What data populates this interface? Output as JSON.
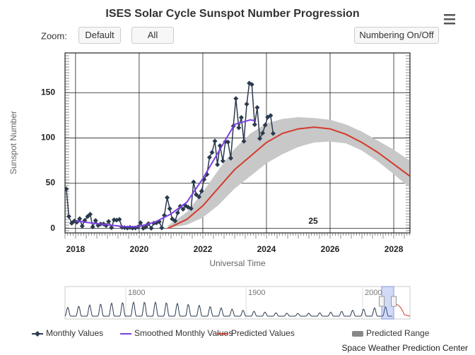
{
  "chart_data": {
    "type": "line",
    "title": "ISES Solar Cycle Sunspot Number Progression",
    "x_label": "Universal Time",
    "y_label": "Sunspot Number",
    "annotation": "25",
    "xlim": [
      2017.67,
      2028.51
    ],
    "ylim": [
      -5,
      194
    ],
    "xticks": [
      2018,
      2020,
      2022,
      2024,
      2026,
      2028
    ],
    "yticks": [
      0,
      50,
      100,
      150
    ],
    "grid": true,
    "legend": "bottom",
    "series": [
      {
        "name": "Monthly Values",
        "color": "#2b3a4e",
        "marker": "diamond",
        "x": [
          2017.71,
          2017.79,
          2017.88,
          2017.96,
          2018.04,
          2018.13,
          2018.21,
          2018.29,
          2018.38,
          2018.46,
          2018.54,
          2018.63,
          2018.71,
          2018.79,
          2018.88,
          2018.96,
          2019.04,
          2019.13,
          2019.21,
          2019.29,
          2019.38,
          2019.46,
          2019.54,
          2019.63,
          2019.71,
          2019.79,
          2019.88,
          2019.96,
          2020.04,
          2020.13,
          2020.21,
          2020.29,
          2020.38,
          2020.46,
          2020.54,
          2020.63,
          2020.71,
          2020.79,
          2020.88,
          2020.96,
          2021.04,
          2021.13,
          2021.21,
          2021.29,
          2021.38,
          2021.46,
          2021.54,
          2021.63,
          2021.71,
          2021.79,
          2021.88,
          2021.96,
          2022.04,
          2022.13,
          2022.21,
          2022.29,
          2022.38,
          2022.46,
          2022.54,
          2022.63,
          2022.71,
          2022.79,
          2022.88,
          2022.96,
          2023.04,
          2023.13,
          2023.21,
          2023.29,
          2023.38,
          2023.46,
          2023.54,
          2023.63,
          2023.71,
          2023.79,
          2023.88,
          2023.96,
          2024.04,
          2024.13,
          2024.21
        ],
        "values": [
          43.6,
          13.2,
          5.7,
          8.2,
          6.8,
          10.7,
          2.5,
          8.9,
          13.1,
          15.6,
          1.6,
          8.7,
          3.3,
          4.9,
          4.9,
          3.1,
          7.7,
          0.8,
          9.4,
          9.1,
          9.9,
          1.2,
          0.9,
          0.5,
          1.1,
          0.4,
          0.5,
          1.5,
          6.2,
          0.2,
          1.5,
          5.2,
          0.2,
          5.8,
          6.1,
          7.5,
          0.6,
          14.4,
          34.0,
          21.8,
          10.4,
          8.2,
          17.2,
          24.5,
          21.2,
          25.0,
          23.4,
          22.0,
          51.3,
          37.4,
          34.8,
          41.1,
          54.0,
          59.7,
          78.5,
          84.1,
          96.5,
          70.5,
          91.4,
          74.6,
          96.0,
          95.5,
          77.6,
          113.1,
          143.6,
          111.3,
          122.6,
          96.4,
          137.4,
          160.5,
          159.1,
          114.8,
          133.6,
          99.4,
          105.4,
          114.2,
          123.0,
          124.7,
          104.9
        ]
      },
      {
        "name": "Smoothed Monthly Values",
        "color": "#7b3fe4",
        "x": [
          2018.0,
          2018.5,
          2019.0,
          2019.5,
          2019.96,
          2020.5,
          2021.0,
          2021.5,
          2022.0,
          2022.5,
          2023.0,
          2023.5,
          2023.63
        ],
        "values": [
          8,
          6,
          4,
          2,
          1.8,
          7,
          16,
          29,
          55,
          85,
          115,
          120,
          119
        ]
      },
      {
        "name": "Predicted Values",
        "color": "#d33a2c",
        "x": [
          2020.9,
          2021.5,
          2022.0,
          2022.5,
          2023.0,
          2023.5,
          2024.0,
          2024.5,
          2025.0,
          2025.5,
          2026.0,
          2026.5,
          2027.0,
          2027.5,
          2028.0,
          2028.5
        ],
        "values": [
          0,
          10,
          25,
          45,
          65,
          80,
          95,
          105,
          110,
          112,
          110,
          104,
          95,
          84,
          71,
          58
        ]
      },
      {
        "name": "Predicted Range",
        "color": "#c8c8c8",
        "kind": "range",
        "x": [
          2020.9,
          2021.5,
          2022.0,
          2022.5,
          2023.0,
          2023.5,
          2024.0,
          2024.5,
          2025.0,
          2025.5,
          2026.0,
          2026.5,
          2027.0,
          2027.5,
          2028.0,
          2028.5
        ],
        "high": [
          3,
          18,
          40,
          65,
          88,
          105,
          116,
          121,
          123,
          122,
          120,
          115,
          107,
          97,
          87,
          75
        ],
        "low": [
          0,
          4,
          12,
          26,
          44,
          58,
          72,
          82,
          90,
          95,
          96,
          94,
          86,
          74,
          60,
          45
        ]
      }
    ]
  },
  "ui": {
    "zoom_label": "Zoom:",
    "buttons": [
      "Default",
      "All",
      "Numbering On/Off"
    ],
    "navigator_labels": [
      "1800",
      "1900",
      "2000"
    ],
    "credit": "Space Weather Prediction Center"
  }
}
